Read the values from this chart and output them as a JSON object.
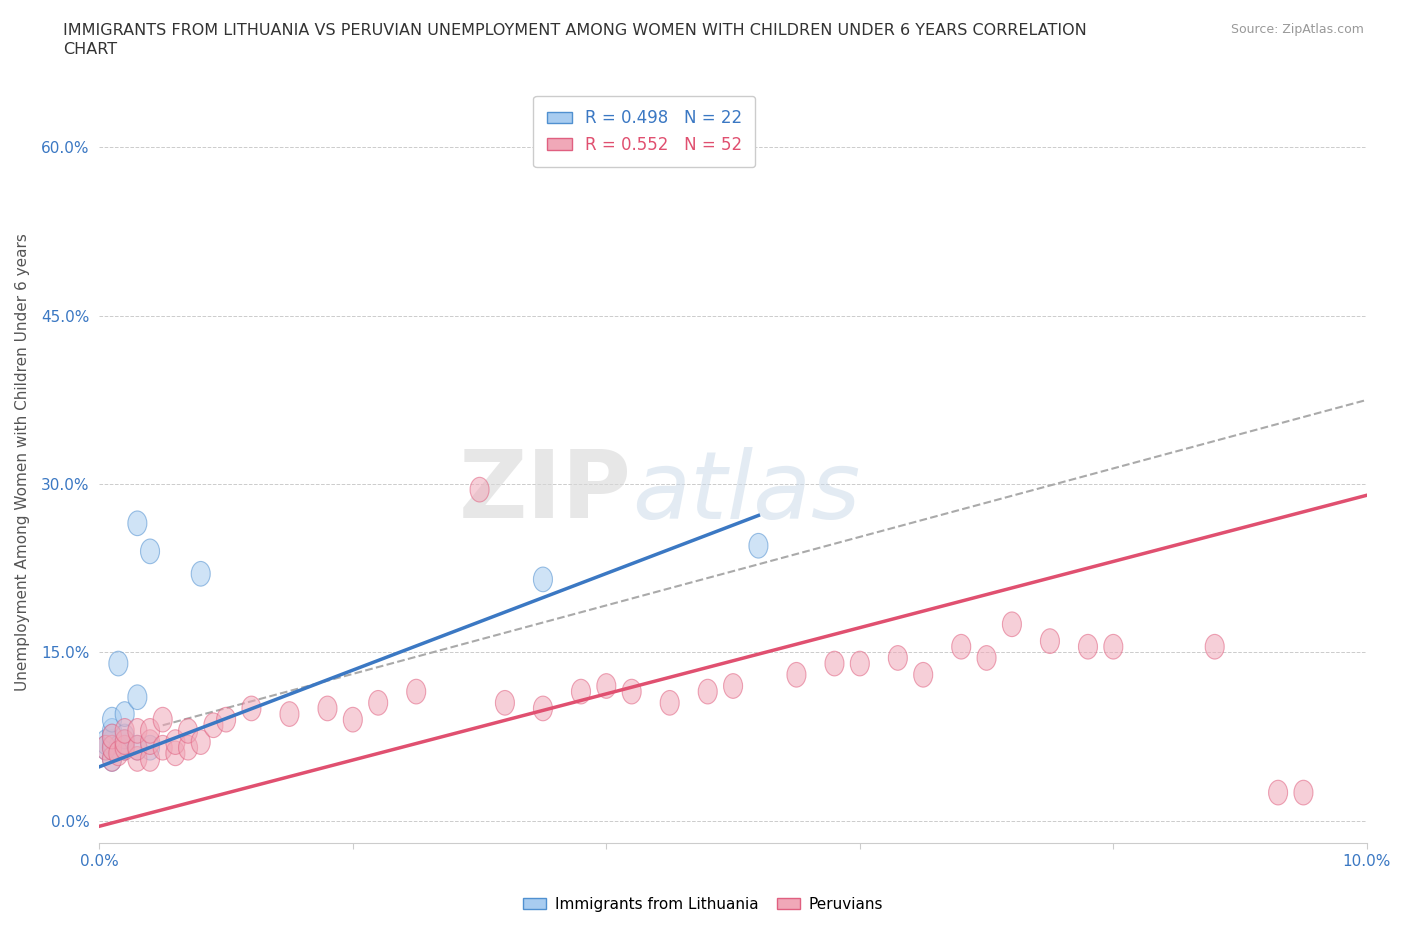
{
  "title_line1": "IMMIGRANTS FROM LITHUANIA VS PERUVIAN UNEMPLOYMENT AMONG WOMEN WITH CHILDREN UNDER 6 YEARS CORRELATION",
  "title_line2": "CHART",
  "source": "Source: ZipAtlas.com",
  "ylabel": "Unemployment Among Women with Children Under 6 years",
  "xlim": [
    0.0,
    0.1
  ],
  "ylim": [
    -0.02,
    0.66
  ],
  "yticks": [
    0.0,
    0.15,
    0.3,
    0.45,
    0.6
  ],
  "ytick_labels": [
    "0.0%",
    "15.0%",
    "30.0%",
    "45.0%",
    "60.0%"
  ],
  "xticks": [
    0.0,
    0.02,
    0.04,
    0.06,
    0.08,
    0.1
  ],
  "xtick_labels": [
    "0.0%",
    "",
    "",
    "",
    "",
    "10.0%"
  ],
  "legend_r1": "R = 0.498   N = 22",
  "legend_r2": "R = 0.552   N = 52",
  "color_blue_fill": "#A8CCF0",
  "color_pink_fill": "#F0A8B8",
  "color_blue_edge": "#5090D0",
  "color_pink_edge": "#E06080",
  "color_blue_line": "#3B78C3",
  "color_pink_line": "#E05070",
  "color_dashed_line": "#AAAAAA",
  "background_color": "#FFFFFF",
  "watermark_zip": "ZIP",
  "watermark_atlas": "atlas",
  "blue_line_x": [
    0.0,
    0.052
  ],
  "blue_line_y": [
    0.048,
    0.272
  ],
  "pink_line_x": [
    0.0,
    0.1
  ],
  "pink_line_y": [
    -0.005,
    0.29
  ],
  "dashed_line_x": [
    0.005,
    0.1
  ],
  "dashed_line_y": [
    0.085,
    0.375
  ],
  "lithuania_x": [
    0.0005,
    0.0005,
    0.001,
    0.001,
    0.001,
    0.001,
    0.001,
    0.001,
    0.0015,
    0.0015,
    0.002,
    0.002,
    0.002,
    0.002,
    0.003,
    0.003,
    0.003,
    0.004,
    0.004,
    0.008,
    0.035,
    0.052
  ],
  "lithuania_y": [
    0.065,
    0.07,
    0.055,
    0.065,
    0.07,
    0.075,
    0.08,
    0.09,
    0.065,
    0.14,
    0.065,
    0.07,
    0.075,
    0.095,
    0.065,
    0.11,
    0.265,
    0.065,
    0.24,
    0.22,
    0.215,
    0.245
  ],
  "peruvian_x": [
    0.0005,
    0.001,
    0.001,
    0.001,
    0.0015,
    0.002,
    0.002,
    0.002,
    0.003,
    0.003,
    0.003,
    0.004,
    0.004,
    0.004,
    0.005,
    0.005,
    0.006,
    0.006,
    0.007,
    0.007,
    0.008,
    0.009,
    0.01,
    0.012,
    0.015,
    0.018,
    0.02,
    0.022,
    0.025,
    0.03,
    0.032,
    0.035,
    0.038,
    0.04,
    0.042,
    0.045,
    0.048,
    0.05,
    0.055,
    0.058,
    0.06,
    0.063,
    0.065,
    0.068,
    0.07,
    0.072,
    0.075,
    0.078,
    0.08,
    0.088,
    0.093,
    0.095
  ],
  "peruvian_y": [
    0.065,
    0.055,
    0.065,
    0.075,
    0.06,
    0.065,
    0.07,
    0.08,
    0.055,
    0.065,
    0.08,
    0.055,
    0.07,
    0.08,
    0.065,
    0.09,
    0.06,
    0.07,
    0.065,
    0.08,
    0.07,
    0.085,
    0.09,
    0.1,
    0.095,
    0.1,
    0.09,
    0.105,
    0.115,
    0.295,
    0.105,
    0.1,
    0.115,
    0.12,
    0.115,
    0.105,
    0.115,
    0.12,
    0.13,
    0.14,
    0.14,
    0.145,
    0.13,
    0.155,
    0.145,
    0.175,
    0.16,
    0.155,
    0.155,
    0.155,
    0.025,
    0.025
  ]
}
